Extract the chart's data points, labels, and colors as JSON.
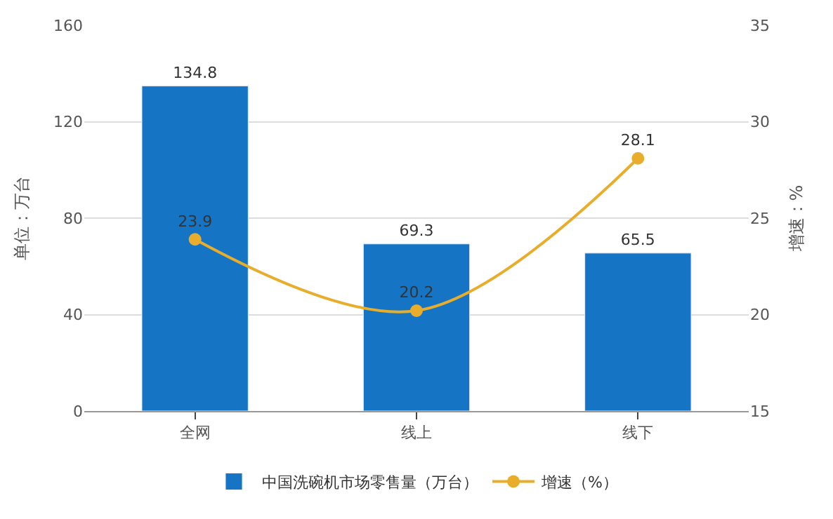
{
  "chart_data": {
    "type": "bar",
    "categories": [
      "全网",
      "线上",
      "线下"
    ],
    "series": [
      {
        "name": "中国洗碗机市场零售量（万台）",
        "color": "#1575c4",
        "values": [
          134.8,
          69.3,
          65.5
        ]
      },
      {
        "name": "增速（%）",
        "type": "line",
        "axis": "y2",
        "color": "#e8ad2a",
        "values": [
          23.9,
          20.2,
          28.1
        ]
      }
    ],
    "ylabel": "单位：万台",
    "y2label": "增速：%",
    "ylim": [
      0,
      160
    ],
    "yticks": [
      0,
      40,
      80,
      120,
      160
    ],
    "y2lim": [
      15,
      35
    ],
    "y2ticks": [
      15,
      20,
      25,
      30,
      35
    ],
    "grid": "y",
    "legend": "bottom",
    "marker": "circle",
    "data_labels": true
  }
}
